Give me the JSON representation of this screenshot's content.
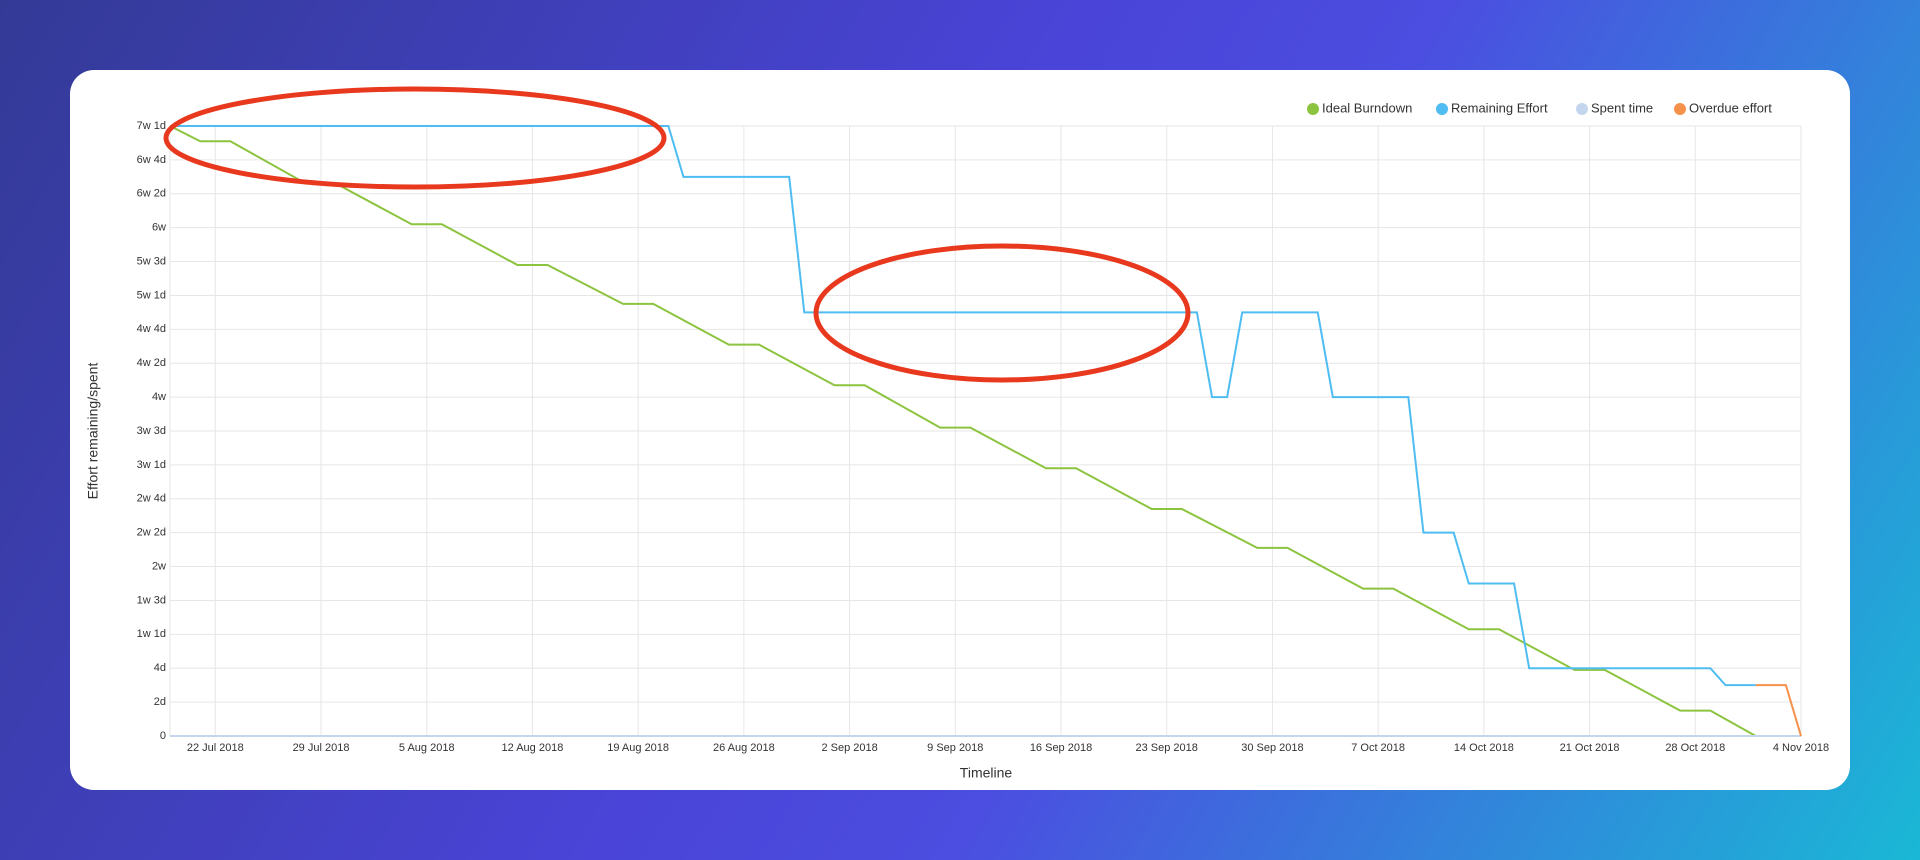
{
  "chart_data": {
    "type": "line",
    "x_label": "Timeline",
    "y_label": "Effort remaining/spent",
    "legend": "top-right",
    "grid": true,
    "xlim": [
      "2018-07-19",
      "2018-11-04"
    ],
    "xticks": [
      {
        "value": "2018-07-22",
        "label": "22 Jul 2018"
      },
      {
        "value": "2018-07-29",
        "label": "29 Jul 2018"
      },
      {
        "value": "2018-08-05",
        "label": "5 Aug 2018"
      },
      {
        "value": "2018-08-12",
        "label": "12 Aug 2018"
      },
      {
        "value": "2018-08-19",
        "label": "19 Aug 2018"
      },
      {
        "value": "2018-08-26",
        "label": "26 Aug 2018"
      },
      {
        "value": "2018-09-02",
        "label": "2 Sep 2018"
      },
      {
        "value": "2018-09-09",
        "label": "9 Sep 2018"
      },
      {
        "value": "2018-09-16",
        "label": "16 Sep 2018"
      },
      {
        "value": "2018-09-23",
        "label": "23 Sep 2018"
      },
      {
        "value": "2018-09-30",
        "label": "30 Sep 2018"
      },
      {
        "value": "2018-10-07",
        "label": "7 Oct 2018"
      },
      {
        "value": "2018-10-14",
        "label": "14 Oct 2018"
      },
      {
        "value": "2018-10-21",
        "label": "21 Oct 2018"
      },
      {
        "value": "2018-10-28",
        "label": "28 Oct 2018"
      },
      {
        "value": "2018-11-04",
        "label": "4 Nov 2018"
      }
    ],
    "ylim": [
      0,
      36
    ],
    "yticks": [
      0,
      {
        "value": 2,
        "label": "2d"
      },
      {
        "value": 4,
        "label": "4d"
      },
      {
        "value": 6,
        "label": "1w 1d"
      },
      {
        "value": 8,
        "label": "1w 3d"
      },
      {
        "value": 10,
        "label": "2w"
      },
      {
        "value": 12,
        "label": "2w 2d"
      },
      {
        "value": 14,
        "label": "2w 4d"
      },
      {
        "value": 16,
        "label": "3w 1d"
      },
      {
        "value": 18,
        "label": "3w 3d"
      },
      {
        "value": 20,
        "label": "4w"
      },
      {
        "value": 22,
        "label": "4w 2d"
      },
      {
        "value": 24,
        "label": "4w 4d"
      },
      {
        "value": 26,
        "label": "5w 1d"
      },
      {
        "value": 28,
        "label": "5w 3d"
      },
      {
        "value": 30,
        "label": "6w"
      },
      {
        "value": 32,
        "label": "6w 2d"
      },
      {
        "value": 34,
        "label": "6w 4d"
      },
      {
        "value": 36,
        "label": "7w 1d"
      }
    ],
    "series": [
      {
        "name": "Ideal Burndown",
        "color": "#8cc43f",
        "x": [
          "2018-07-19",
          "2018-07-21",
          "2018-07-23",
          "2018-07-28",
          "2018-07-30",
          "2018-08-04",
          "2018-08-06",
          "2018-08-11",
          "2018-08-13",
          "2018-08-18",
          "2018-08-20",
          "2018-08-25",
          "2018-08-27",
          "2018-09-01",
          "2018-09-03",
          "2018-09-08",
          "2018-09-10",
          "2018-09-15",
          "2018-09-17",
          "2018-09-22",
          "2018-09-24",
          "2018-09-29",
          "2018-10-01",
          "2018-10-06",
          "2018-10-08",
          "2018-10-13",
          "2018-10-15",
          "2018-10-20",
          "2018-10-22",
          "2018-10-27",
          "2018-10-29",
          "2018-11-01"
        ],
        "values": [
          36,
          35.1,
          35.1,
          32.6,
          32.6,
          30.2,
          30.2,
          27.8,
          27.8,
          25.5,
          25.5,
          23.1,
          23.1,
          20.7,
          20.7,
          18.2,
          18.2,
          15.8,
          15.8,
          13.4,
          13.4,
          11.1,
          11.1,
          8.7,
          8.7,
          6.3,
          6.3,
          3.9,
          3.9,
          1.5,
          1.5,
          0
        ]
      },
      {
        "name": "Remaining Effort",
        "color": "#4fbdf2",
        "x": [
          "2018-07-19",
          "2018-08-21",
          "2018-08-22",
          "2018-08-29",
          "2018-08-30",
          "2018-09-25",
          "2018-09-26",
          "2018-09-27",
          "2018-09-28",
          "2018-10-03",
          "2018-10-04",
          "2018-10-09",
          "2018-10-10",
          "2018-10-12",
          "2018-10-13",
          "2018-10-16",
          "2018-10-17",
          "2018-10-29",
          "2018-10-30",
          "2018-11-01"
        ],
        "values": [
          36,
          36,
          33,
          33,
          25,
          25,
          20,
          20,
          25,
          25,
          20,
          20,
          12,
          12,
          9,
          9,
          4,
          4,
          3,
          3
        ]
      },
      {
        "name": "Spent time",
        "color": "#c3d6ee",
        "x": [
          "2018-07-19",
          "2018-11-04"
        ],
        "values": [
          0,
          0
        ]
      },
      {
        "name": "Overdue effort",
        "color": "#f5914a",
        "x": [
          "2018-11-01",
          "2018-11-03",
          "2018-11-04"
        ],
        "values": [
          3,
          3,
          0
        ]
      }
    ]
  }
}
